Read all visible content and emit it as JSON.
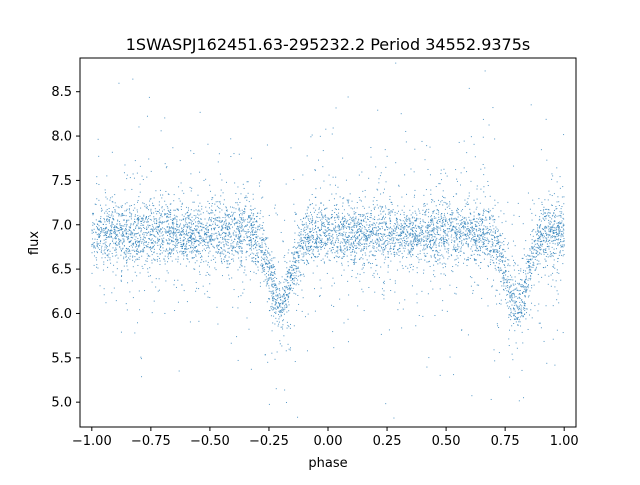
{
  "chart_data": {
    "type": "scatter",
    "title": "1SWASPJ162451.63-295232.2 Period 34552.9375s",
    "xlabel": "phase",
    "ylabel": "flux",
    "xlim": [
      -1.05,
      1.05
    ],
    "ylim": [
      4.72,
      8.88
    ],
    "xticks": [
      -1.0,
      -0.75,
      -0.5,
      -0.25,
      0.0,
      0.25,
      0.5,
      0.75,
      1.0
    ],
    "xtick_labels": [
      "−1.00",
      "−0.75",
      "−0.50",
      "−0.25",
      "0.00",
      "0.25",
      "0.50",
      "0.75",
      "1.00"
    ],
    "yticks": [
      5.0,
      5.5,
      6.0,
      6.5,
      7.0,
      7.5,
      8.0,
      8.5
    ],
    "ytick_labels": [
      "5.0",
      "5.5",
      "6.0",
      "6.5",
      "7.0",
      "7.5",
      "8.0",
      "8.5"
    ],
    "grid": false,
    "legend": "none",
    "marker_color": "#1f77b4",
    "series": [
      {
        "x_range": [
          -1.0,
          1.0
        ],
        "baseline": 6.9,
        "eclipse_phases": [
          -0.2,
          0.8
        ],
        "eclipse_min": 6.1
      }
    ]
  }
}
